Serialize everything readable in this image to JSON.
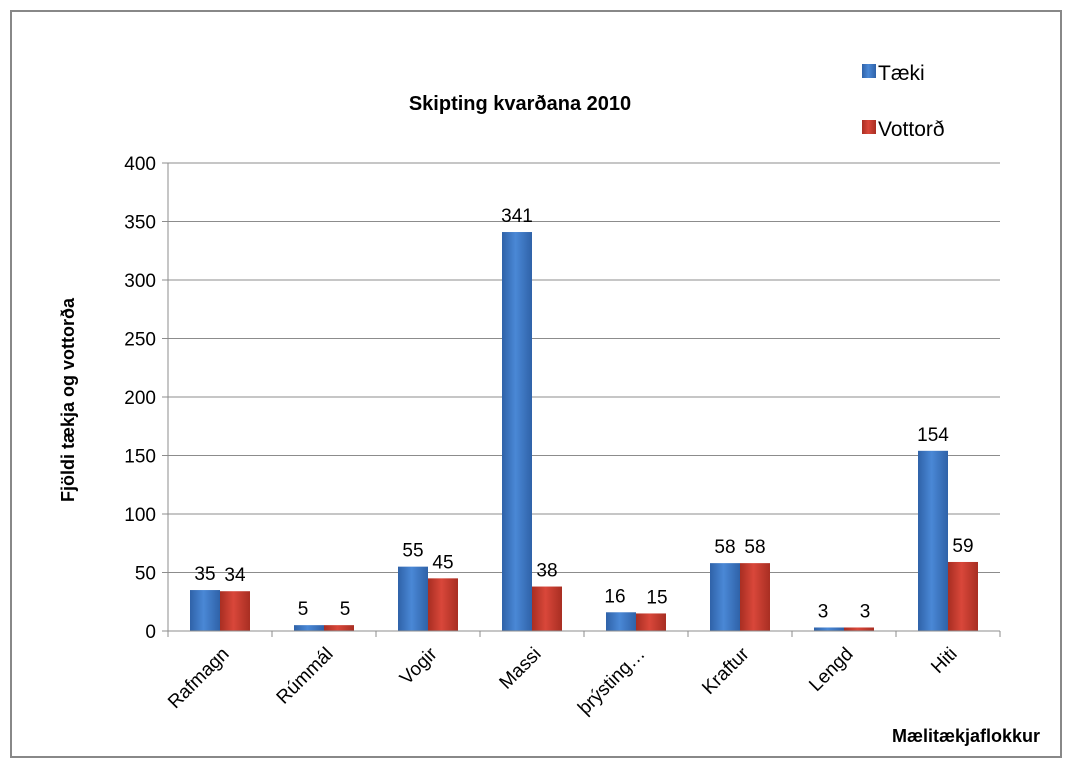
{
  "chart_data": {
    "type": "bar",
    "title": "Skipting kvarðana 2010",
    "xlabel": "Mælitækjaflokkur",
    "ylabel": "Fjöldi tækja og vottorða",
    "categories": [
      "Rafmagn",
      "Rúmmál",
      "Vogir",
      "Massi",
      "þrýsting…",
      "Kraftur",
      "Lengd",
      "Hiti"
    ],
    "series": [
      {
        "name": "Tæki",
        "values": [
          35,
          5,
          55,
          341,
          16,
          58,
          3,
          154
        ],
        "color": "#3a75c4"
      },
      {
        "name": "Vottorð",
        "values": [
          34,
          5,
          45,
          38,
          15,
          58,
          3,
          59
        ],
        "color": "#c0392b"
      }
    ],
    "ylim": [
      0,
      400
    ],
    "yticks": [
      0,
      50,
      100,
      150,
      200,
      250,
      300,
      350,
      400
    ],
    "grid": true,
    "legend": "top-right",
    "data_labels": true
  }
}
